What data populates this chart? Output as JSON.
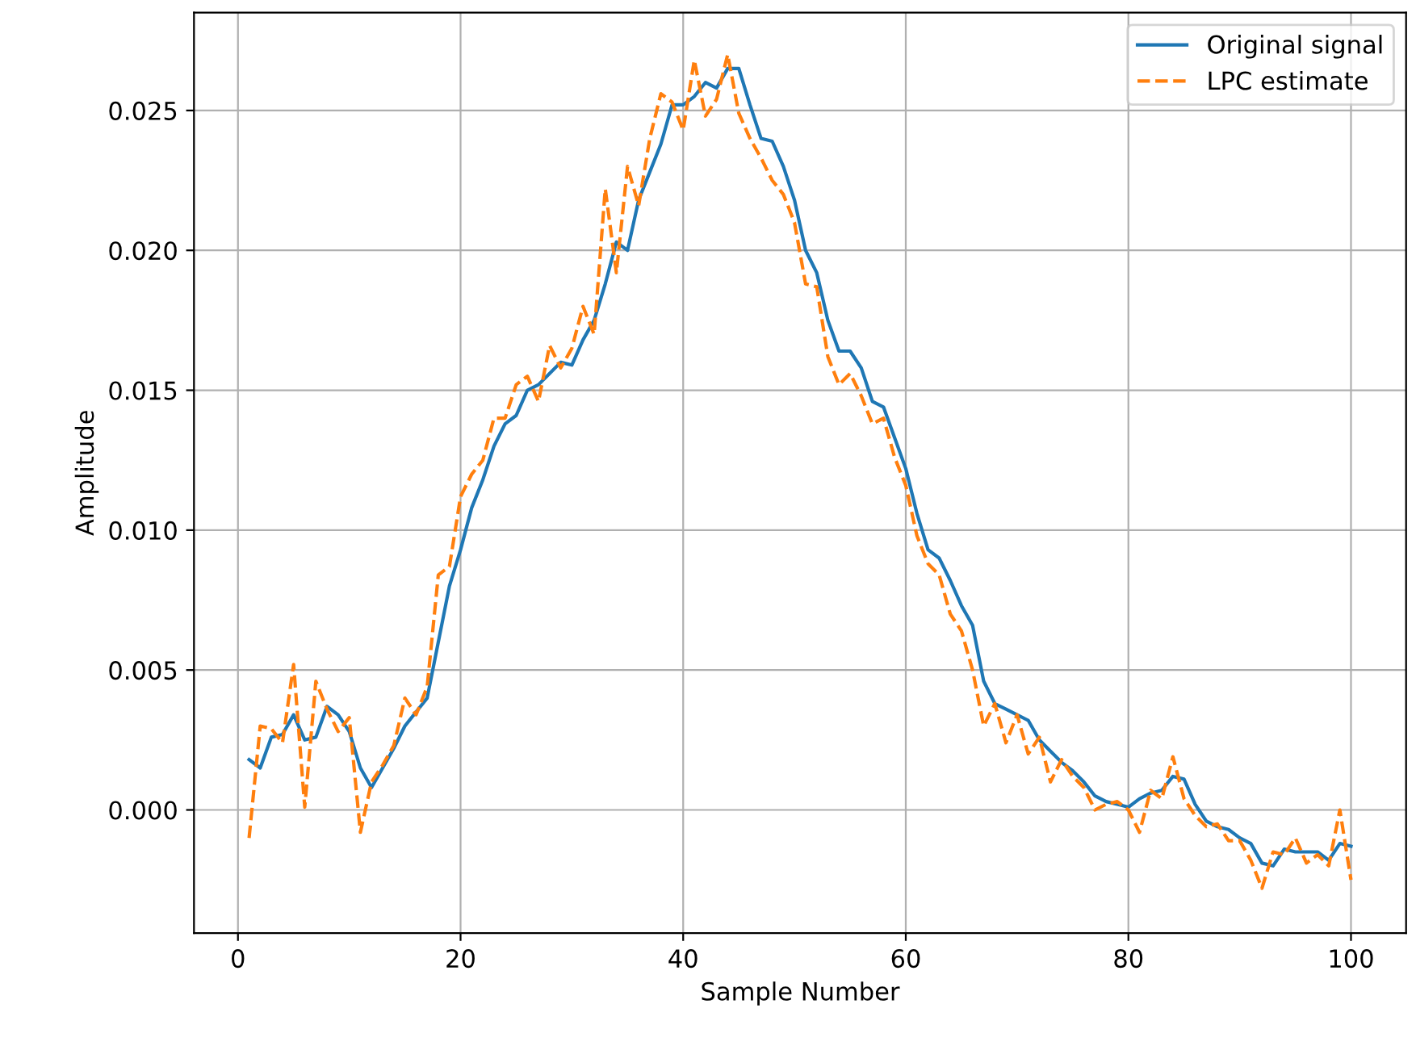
{
  "chart_data": {
    "type": "line",
    "xlabel": "Sample Number",
    "ylabel": "Amplitude",
    "x": [
      1,
      2,
      3,
      4,
      5,
      6,
      7,
      8,
      9,
      10,
      11,
      12,
      13,
      14,
      15,
      16,
      17,
      18,
      19,
      20,
      21,
      22,
      23,
      24,
      25,
      26,
      27,
      28,
      29,
      30,
      31,
      32,
      33,
      34,
      35,
      36,
      37,
      38,
      39,
      40,
      41,
      42,
      43,
      44,
      45,
      46,
      47,
      48,
      49,
      50,
      51,
      52,
      53,
      54,
      55,
      56,
      57,
      58,
      59,
      60,
      61,
      62,
      63,
      64,
      65,
      66,
      67,
      68,
      69,
      70,
      71,
      72,
      73,
      74,
      75,
      76,
      77,
      78,
      79,
      80,
      81,
      82,
      83,
      84,
      85,
      86,
      87,
      88,
      89,
      90,
      91,
      92,
      93,
      94,
      95,
      96,
      97,
      98,
      99,
      100
    ],
    "series": [
      {
        "name": "Original signal",
        "color": "#1f77b4",
        "line_style": "solid",
        "values": [
          0.0018,
          0.0015,
          0.0026,
          0.0027,
          0.0034,
          0.0025,
          0.0026,
          0.0037,
          0.0034,
          0.0028,
          0.0015,
          0.0008,
          0.0015,
          0.0022,
          0.003,
          0.0035,
          0.004,
          0.006,
          0.008,
          0.0093,
          0.0108,
          0.0118,
          0.013,
          0.0138,
          0.0141,
          0.015,
          0.0152,
          0.0156,
          0.016,
          0.0159,
          0.0168,
          0.0175,
          0.0188,
          0.0203,
          0.02,
          0.0218,
          0.0228,
          0.0238,
          0.0252,
          0.0252,
          0.0255,
          0.026,
          0.0258,
          0.0265,
          0.0265,
          0.0252,
          0.024,
          0.0239,
          0.023,
          0.0218,
          0.02,
          0.0192,
          0.0175,
          0.0164,
          0.0164,
          0.0158,
          0.0146,
          0.0144,
          0.0133,
          0.0122,
          0.0106,
          0.0093,
          0.009,
          0.0082,
          0.0073,
          0.0066,
          0.0046,
          0.0038,
          0.0036,
          0.0034,
          0.0032,
          0.0025,
          0.0021,
          0.0017,
          0.0014,
          0.001,
          0.0005,
          0.0003,
          0.0002,
          0.0001,
          0.0004,
          0.0006,
          0.0007,
          0.0012,
          0.0011,
          0.0002,
          -0.0004,
          -0.0006,
          -0.0007,
          -0.001,
          -0.0012,
          -0.0019,
          -0.002,
          -0.0014,
          -0.0015,
          -0.0015,
          -0.0015,
          -0.0018,
          -0.0012,
          -0.0013
        ]
      },
      {
        "name": "LPC estimate",
        "color": "#ff7f0e",
        "line_style": "dashed",
        "values": [
          -0.001,
          0.003,
          0.0029,
          0.0024,
          0.0052,
          0.0001,
          0.0046,
          0.0036,
          0.0028,
          0.0033,
          -0.0008,
          0.001,
          0.0016,
          0.0023,
          0.004,
          0.0034,
          0.0044,
          0.0084,
          0.0087,
          0.0112,
          0.012,
          0.0125,
          0.014,
          0.014,
          0.0152,
          0.0155,
          0.0146,
          0.0166,
          0.0158,
          0.0165,
          0.018,
          0.017,
          0.0222,
          0.0192,
          0.023,
          0.0216,
          0.024,
          0.0256,
          0.0253,
          0.0243,
          0.0268,
          0.0248,
          0.0254,
          0.027,
          0.0249,
          0.024,
          0.0233,
          0.0225,
          0.022,
          0.021,
          0.0188,
          0.0187,
          0.0162,
          0.0152,
          0.0156,
          0.0148,
          0.0138,
          0.014,
          0.0126,
          0.0116,
          0.0098,
          0.0088,
          0.0084,
          0.007,
          0.0064,
          0.005,
          0.003,
          0.0038,
          0.0024,
          0.0034,
          0.002,
          0.0026,
          0.001,
          0.0018,
          0.0012,
          0.0008,
          0.0,
          0.0002,
          0.0003,
          0.0,
          -0.0008,
          0.0007,
          0.0004,
          0.0019,
          0.0004,
          -0.0002,
          -0.0006,
          -0.0005,
          -0.0011,
          -0.0011,
          -0.0018,
          -0.0028,
          -0.0015,
          -0.0016,
          -0.001,
          -0.0019,
          -0.0016,
          -0.002,
          0.0,
          -0.0025
        ]
      }
    ],
    "xlim": [
      -3.95,
      104.95
    ],
    "ylim": [
      -0.0044,
      0.0285
    ],
    "xticks": [
      0,
      20,
      40,
      60,
      80,
      100
    ],
    "yticks": [
      {
        "value": 0,
        "label": "0.000"
      },
      {
        "value": 0.005,
        "label": "0.005"
      },
      {
        "value": 0.01,
        "label": "0.010"
      },
      {
        "value": 0.015,
        "label": "0.015"
      },
      {
        "value": 0.02,
        "label": "0.020"
      },
      {
        "value": 0.025,
        "label": "0.025"
      }
    ],
    "grid": true,
    "legend": "top right"
  }
}
